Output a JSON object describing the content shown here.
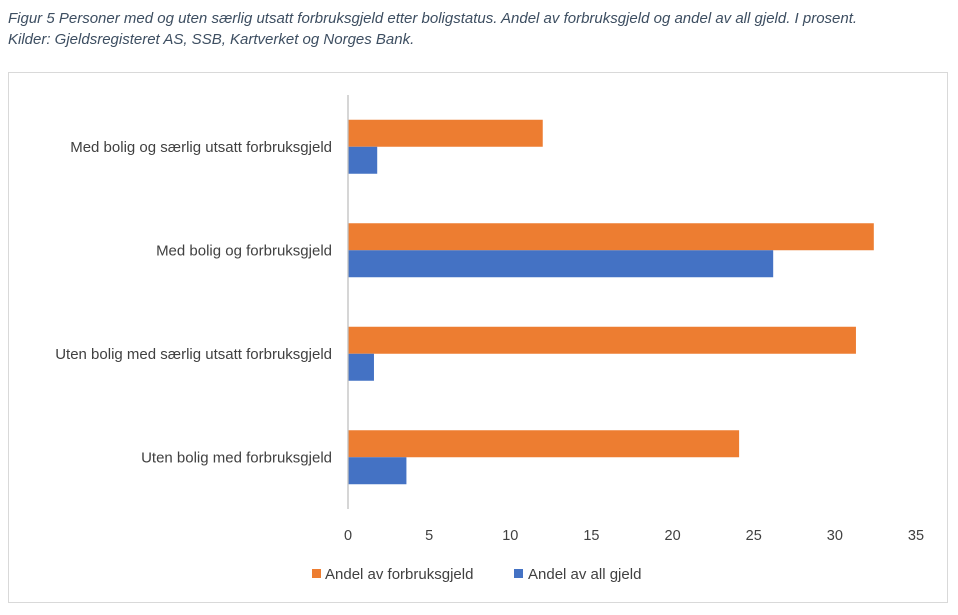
{
  "caption": {
    "line1": "Figur 5 Personer med og uten særlig utsatt forbruksgjeld etter boligstatus. Andel av forbruksgjeld og andel av all gjeld. I prosent.",
    "line2": "Kilder: Gjeldsregisteret AS, SSB, Kartverket og Norges Bank."
  },
  "chart_data": {
    "type": "bar",
    "orientation": "horizontal",
    "title": "Personer med og uten særlig utsatt forbruksgjeld etter boligstatus. Andel av forbruksgjeld og andel av all gjeld. I prosent.",
    "categories": [
      "Med bolig og særlig utsatt forbruksgjeld",
      "Med bolig og forbruksgjeld",
      "Uten bolig med særlig utsatt forbruksgjeld",
      "Uten bolig med forbruksgjeld"
    ],
    "series": [
      {
        "name": "Andel av forbruksgjeld",
        "color": "#ed7d31",
        "values": [
          12.0,
          32.4,
          31.3,
          24.1
        ]
      },
      {
        "name": "Andel av all gjeld",
        "color": "#4472c4",
        "values": [
          1.8,
          26.2,
          1.6,
          3.6
        ]
      }
    ],
    "xlim": [
      0,
      35
    ],
    "xticks": [
      "0",
      "5",
      "10",
      "15",
      "20",
      "25",
      "30",
      "35"
    ],
    "grid": false,
    "legend": "bottom",
    "xlabel": "",
    "ylabel": ""
  }
}
